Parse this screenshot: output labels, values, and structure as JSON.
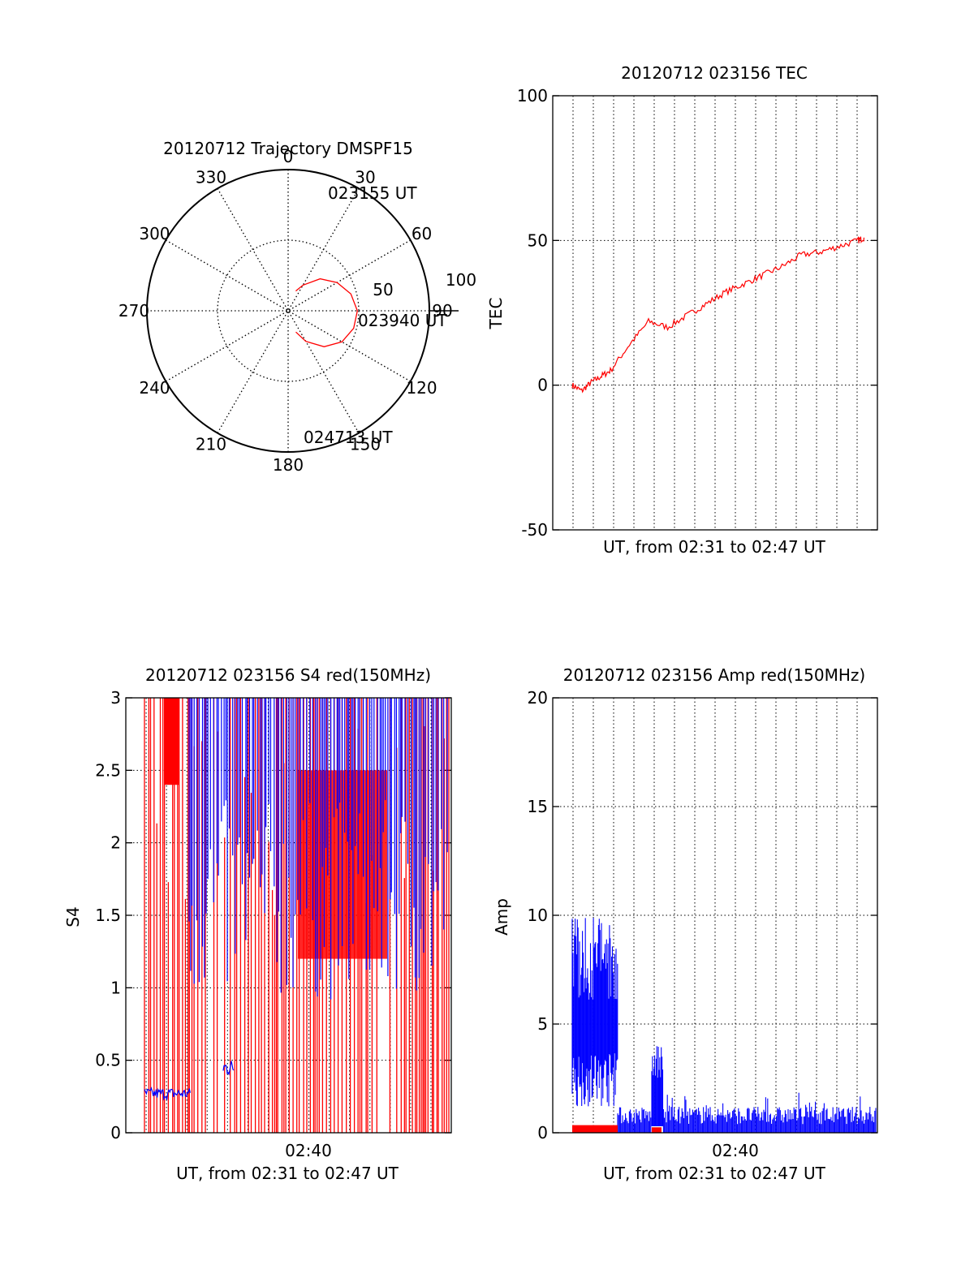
{
  "colors": {
    "red": "#ff0000",
    "blue": "#0000ff",
    "axis": "#000000",
    "grid": "#000000"
  },
  "chart_data": [
    {
      "type": "polar",
      "title": "20120712 Trajectory DMSPF15",
      "angle_ticks": [
        "0",
        "30",
        "60",
        "90",
        "120",
        "150",
        "180",
        "210",
        "240",
        "270",
        "300",
        "330"
      ],
      "radius_ticks": [
        "50",
        "100"
      ],
      "rlim": [
        0,
        100
      ],
      "trajectory_labels": [
        "023155 UT",
        "023940 UT",
        "024713 UT"
      ],
      "series": [
        {
          "color": "red",
          "points": [
            {
              "az": 21,
              "el": 15
            },
            {
              "az": 30,
              "el": 21
            },
            {
              "az": 45,
              "el": 32
            },
            {
              "az": 60,
              "el": 40
            },
            {
              "az": 75,
              "el": 46
            },
            {
              "az": 90,
              "el": 49
            },
            {
              "az": 105,
              "el": 48
            },
            {
              "az": 120,
              "el": 44
            },
            {
              "az": 135,
              "el": 36
            },
            {
              "az": 150,
              "el": 25
            },
            {
              "az": 160,
              "el": 16
            }
          ]
        }
      ]
    },
    {
      "type": "line",
      "title": "20120712 023156 TEC",
      "ylabel": "TEC",
      "xlabel": "UT, from 02:31 to 02:47 UT",
      "x_tick_labels": [],
      "ylim": [
        -50,
        100
      ],
      "y_ticks": [
        -50,
        0,
        50,
        100
      ],
      "grid": true,
      "series": [
        {
          "color": "red",
          "x_range": [
            "02:31:56",
            "02:47:13"
          ],
          "x_minutes": [
            0,
            0.5,
            1,
            1.5,
            2,
            3,
            4,
            5,
            6,
            7,
            8,
            9,
            10,
            11,
            12,
            13,
            14,
            15,
            15.3
          ],
          "values": [
            0,
            -2,
            1,
            3,
            5,
            14,
            22,
            20,
            24,
            28,
            32,
            35,
            38,
            41,
            45,
            46,
            48,
            50,
            51
          ]
        }
      ]
    },
    {
      "type": "line",
      "title": "20120712 023156 S4 red(150MHz)",
      "ylabel": "S4",
      "xlabel": "UT, from 02:31 to 02:47 UT",
      "x_tick_labels": [
        "02:40"
      ],
      "ylim": [
        0,
        3
      ],
      "y_ticks": [
        0,
        0.5,
        1,
        1.5,
        2,
        2.5,
        3
      ],
      "grid": true,
      "series": [
        {
          "color": "blue",
          "description_values": {
            "02:32-02:33": 0.27,
            "02:35": 0.45,
            "02:33-02:34": [
              1.5,
              3
            ],
            "02:34-02:47": [
              0.9,
              3
            ]
          }
        },
        {
          "color": "red",
          "description_values": {
            "02:31-02:47": [
              0,
              3
            ]
          }
        }
      ]
    },
    {
      "type": "line",
      "title": "20120712 023156 Amp red(150MHz)",
      "ylabel": "Amp",
      "xlabel": "UT, from 02:31 to 02:47 UT",
      "x_tick_labels": [
        "02:40"
      ],
      "ylim": [
        0,
        20
      ],
      "y_ticks": [
        0,
        5,
        10,
        15,
        20
      ],
      "grid": true,
      "series": [
        {
          "color": "blue",
          "description_values": {
            "02:32-02:34": [
              2,
              11
            ],
            "02:36": [
              0,
              4
            ],
            "02:34-02:47": [
              0,
              1.5
            ]
          }
        },
        {
          "color": "red",
          "description_values": {
            "02:32-02:34": 0.2,
            "02:36": 0.2
          }
        }
      ]
    }
  ]
}
